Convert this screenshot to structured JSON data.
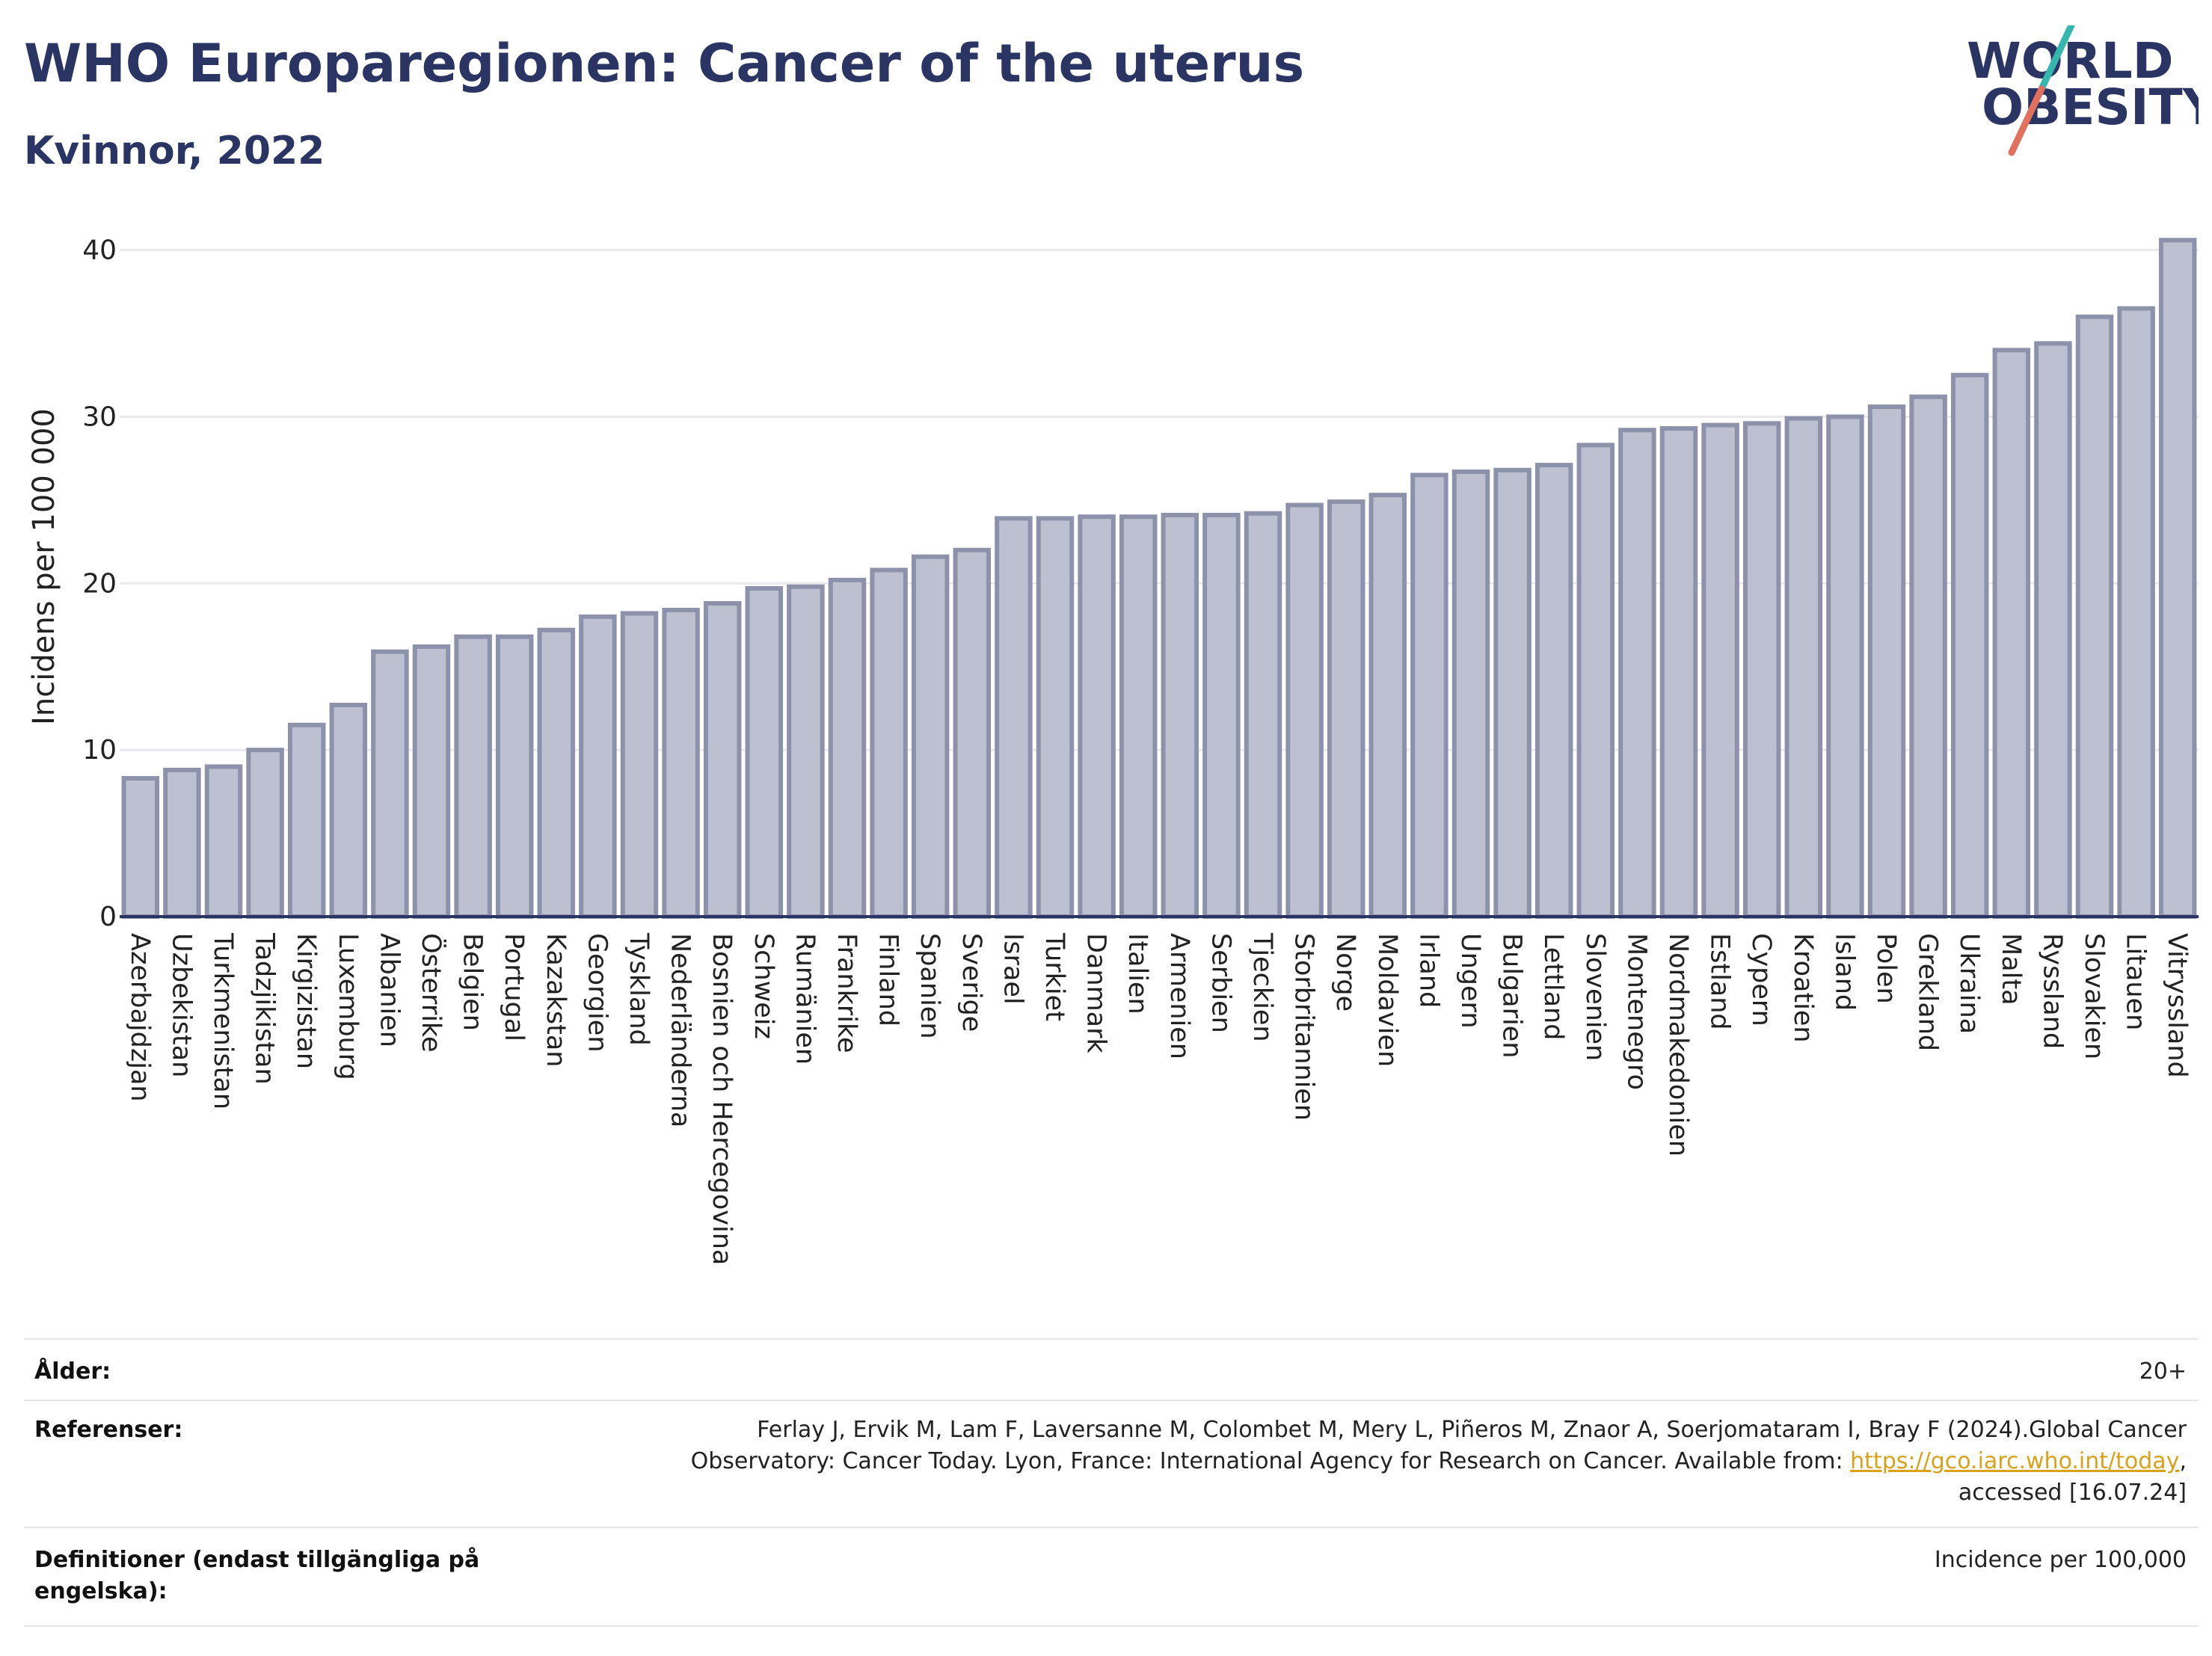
{
  "header": {
    "title": "WHO Europaregionen: Cancer of the uterus",
    "subtitle": "Kvinnor, 2022"
  },
  "logo": {
    "line1": "WORLD",
    "line2": "OBESITY"
  },
  "colors": {
    "title": "#2b3563",
    "bar_fill": "#bcc0d0",
    "bar_stroke": "#8d92aa",
    "axis": "#2b3563",
    "grid": "#e9e9ee",
    "link": "#d9a21b"
  },
  "chart_data": {
    "type": "bar",
    "title": "WHO Europaregionen: Cancer of the uterus",
    "subtitle": "Kvinnor, 2022",
    "xlabel": "",
    "ylabel": "Incidens per 100 000",
    "ylim": [
      0,
      42
    ],
    "yticks": [
      0,
      10,
      20,
      30,
      40
    ],
    "grid": true,
    "categories": [
      "Azerbajdzjan",
      "Uzbekistan",
      "Turkmenistan",
      "Tadzjikistan",
      "Kirgizistan",
      "Luxemburg",
      "Albanien",
      "Österrike",
      "Belgien",
      "Portugal",
      "Kazakstan",
      "Georgien",
      "Tyskland",
      "Nederländerna",
      "Bosnien och Hercegovina",
      "Schweiz",
      "Rumänien",
      "Frankrike",
      "Finland",
      "Spanien",
      "Sverige",
      "Israel",
      "Turkiet",
      "Danmark",
      "Italien",
      "Armenien",
      "Serbien",
      "Tjeckien",
      "Storbritannien",
      "Norge",
      "Moldavien",
      "Irland",
      "Ungern",
      "Bulgarien",
      "Lettland",
      "Slovenien",
      "Montenegro",
      "Nordmakedonien",
      "Estland",
      "Cypern",
      "Kroatien",
      "Island",
      "Polen",
      "Grekland",
      "Ukraina",
      "Malta",
      "Ryssland",
      "Slovakien",
      "Litauen",
      "Vitryssland"
    ],
    "values": [
      8.3,
      8.8,
      9.0,
      10.0,
      11.5,
      12.7,
      15.9,
      16.2,
      16.8,
      16.8,
      17.2,
      18.0,
      18.2,
      18.4,
      18.8,
      19.7,
      19.8,
      20.2,
      20.8,
      21.6,
      22.0,
      23.9,
      23.9,
      24.0,
      24.0,
      24.1,
      24.1,
      24.2,
      24.7,
      24.9,
      25.3,
      26.5,
      26.7,
      26.8,
      27.1,
      28.3,
      29.2,
      29.3,
      29.5,
      29.6,
      29.9,
      30.0,
      30.6,
      31.2,
      32.5,
      34.0,
      34.4,
      36.0,
      36.5,
      40.6
    ]
  },
  "meta": {
    "age_label": "Ålder:",
    "age_value": "20+",
    "references_label": "Referenser:",
    "references_line1": "Ferlay J, Ervik M, Lam F, Laversanne M, Colombet M, Mery L, Piñeros M, Znaor A, Soerjomataram I, Bray F (2024).Global Cancer",
    "references_line2_pre": "Observatory: Cancer Today. Lyon, France: International Agency for Research on Cancer. Available from: ",
    "references_link": "https://gco.iarc.who.int/today",
    "references_line2_post": ",",
    "references_line3": "accessed [16.07.24]",
    "definitions_label_line1": "Definitioner (endast tillgängliga på",
    "definitions_label_line2": "engelska):",
    "definitions_value": "Incidence per 100,000"
  }
}
